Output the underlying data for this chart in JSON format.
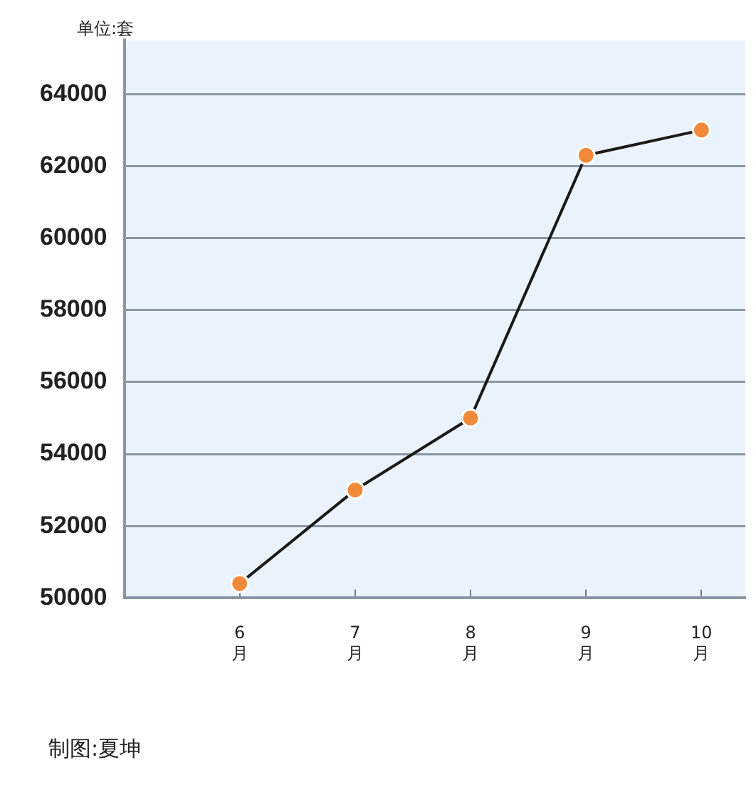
{
  "chart_data": {
    "type": "line",
    "ylabel": "单位:套",
    "categories": [
      "6\n月",
      "7\n月",
      "8\n月",
      "9\n月",
      "10\n月"
    ],
    "series": [
      {
        "color": "#1a1a1a",
        "values": [
          50400,
          53000,
          55000,
          62300,
          63000
        ]
      }
    ],
    "ylim": [
      50000,
      65500
    ],
    "yticks": [
      50000,
      52000,
      54000,
      56000,
      58000,
      60000,
      62000,
      64000
    ],
    "grid": "y",
    "legend": false,
    "marker": "circle",
    "line_style": "solid",
    "annotations": [
      "制图:夏坤"
    ]
  }
}
